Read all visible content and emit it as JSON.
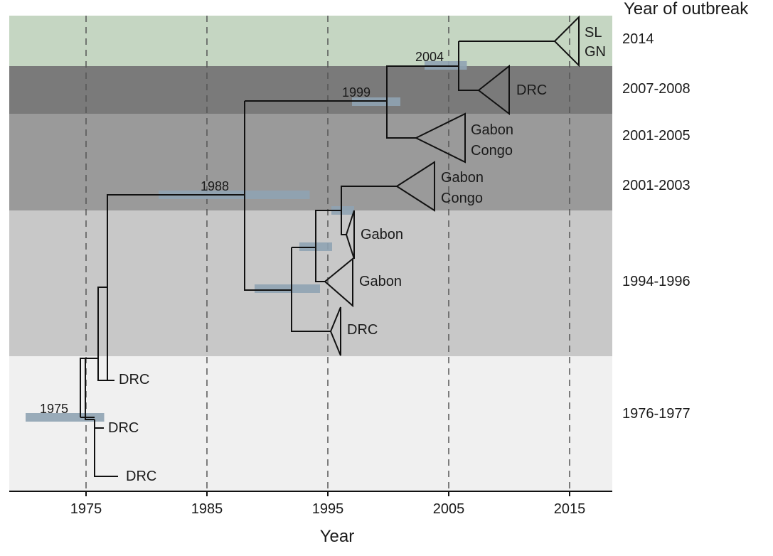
{
  "figure": {
    "band_header": "Year of outbreak",
    "x_axis_title": "Year",
    "x_ticks": [
      {
        "label": "1975",
        "year": 1975
      },
      {
        "label": "1985",
        "year": 1985
      },
      {
        "label": "1995",
        "year": 1995
      },
      {
        "label": "2005",
        "year": 2005
      },
      {
        "label": "2015",
        "year": 2015
      }
    ],
    "bands": [
      {
        "label": "2014",
        "color": "#c5d6c2"
      },
      {
        "label": "2007-2008",
        "color": "#7a7a7a"
      },
      {
        "label": "2001-2005",
        "color": "#9a9a9a"
      },
      {
        "label": "2001-2003",
        "color": "#9a9a9a"
      },
      {
        "label": "1994-1996",
        "color": "#c8c8c8"
      },
      {
        "label": "1976-1977",
        "color": "#f0f0f0"
      }
    ],
    "nodes": [
      {
        "label": "1975",
        "year": 1975,
        "ci": [
          1970,
          1976.5
        ]
      },
      {
        "label": "1988",
        "year": 1988,
        "ci": [
          1981,
          1993.5
        ]
      },
      {
        "label": "1999",
        "year": 1999,
        "ci": [
          1997,
          2001
        ]
      },
      {
        "label": "2004",
        "year": 2004,
        "ci": [
          2003,
          2006.5
        ]
      }
    ],
    "clades": [
      {
        "lines": [
          "SL",
          "GN"
        ]
      },
      {
        "lines": [
          "DRC"
        ]
      },
      {
        "lines": [
          "Gabon",
          "Congo"
        ]
      },
      {
        "lines": [
          "Gabon",
          "Congo"
        ]
      },
      {
        "lines": [
          "Gabon"
        ]
      },
      {
        "lines": [
          "Gabon"
        ]
      },
      {
        "lines": [
          "DRC"
        ]
      }
    ],
    "tips": [
      "DRC",
      "DRC",
      "DRC"
    ],
    "colors": {
      "tree": "#111111",
      "ci_bar": "#8fa3b3",
      "gridline": "#555555"
    }
  }
}
